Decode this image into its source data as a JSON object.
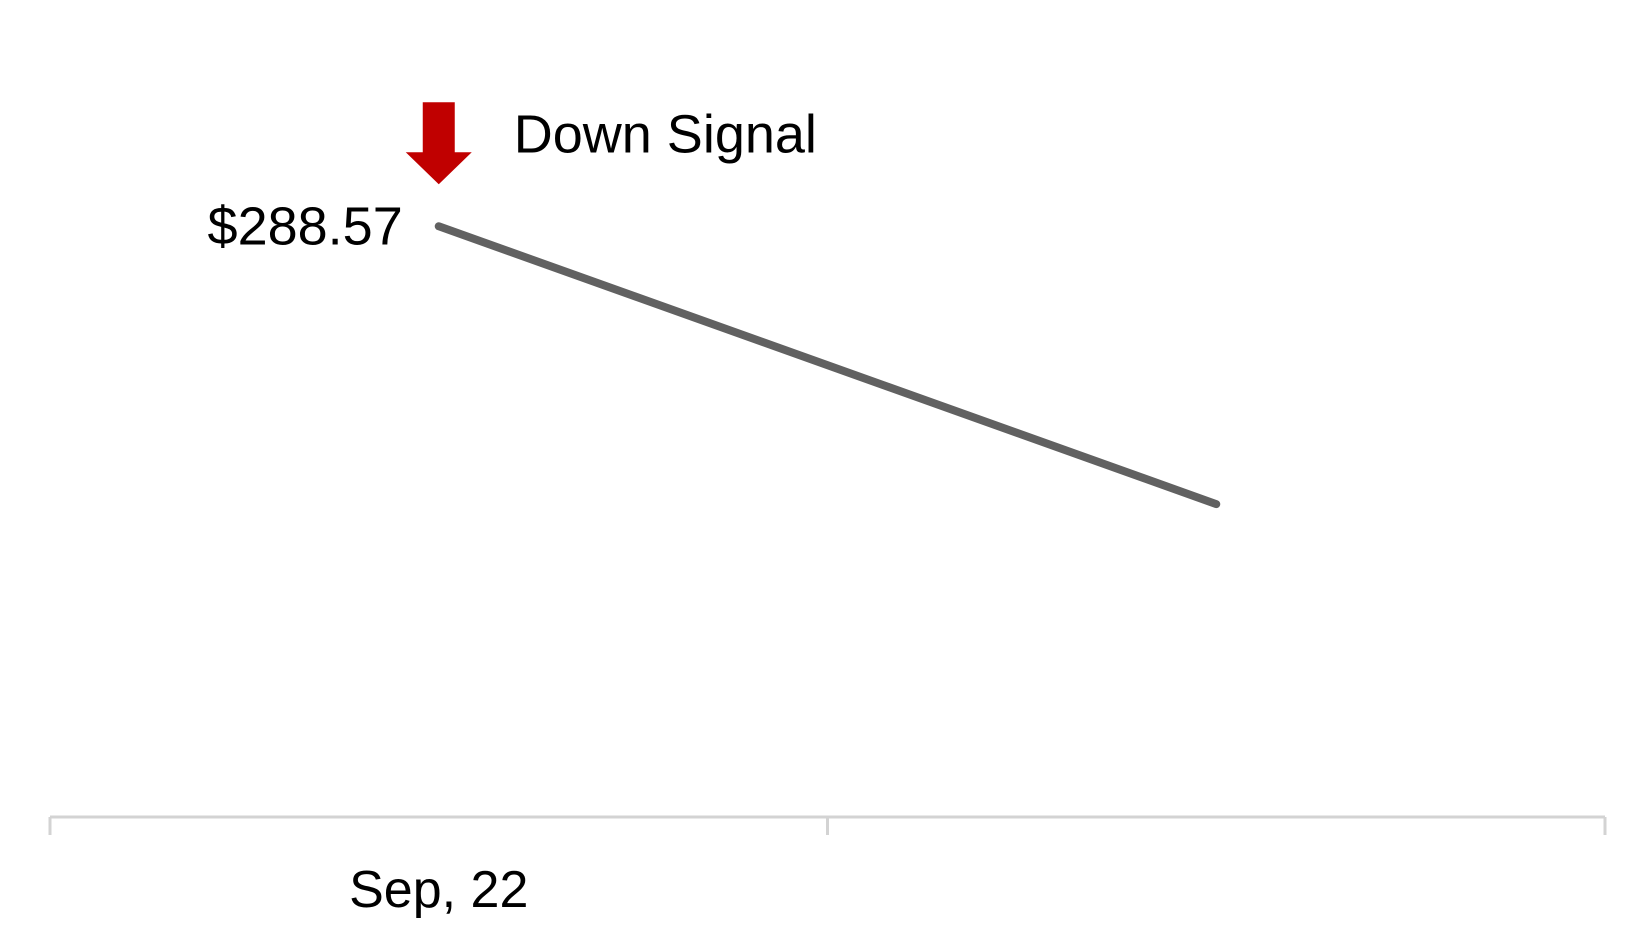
{
  "chart_data": {
    "type": "line",
    "x": [
      "Sep, 22",
      ""
    ],
    "series": [
      {
        "values": [
          288.57,
          287.1
        ]
      }
    ],
    "price_label": "$288.57",
    "annotation": {
      "label": "Down Signal",
      "direction": "down",
      "x_index": 0
    },
    "x_tick_labels": [
      "Sep, 22"
    ],
    "ylim": [
      286.0,
      289.0
    ],
    "grid": false,
    "colors": {
      "line": "#616161",
      "signal_arrow": "#c00000",
      "axis": "#d3d3d3",
      "text": "#000000"
    }
  }
}
